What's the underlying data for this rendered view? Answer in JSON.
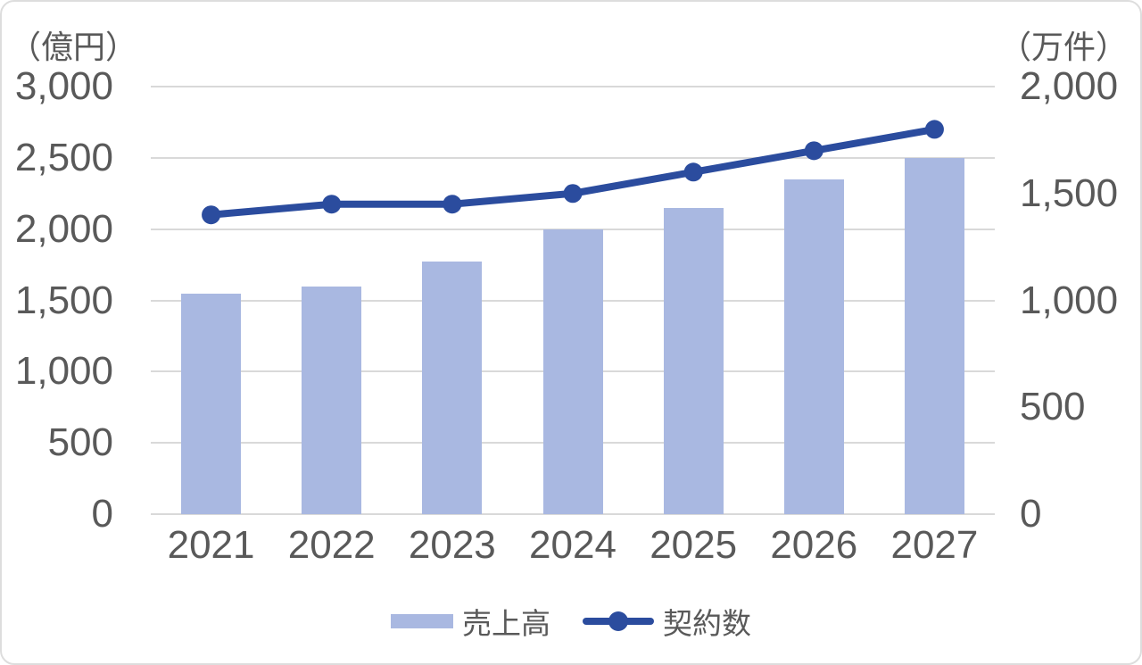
{
  "chart_data": {
    "type": "combo-bar-line",
    "title": "",
    "categories": [
      "2021",
      "2022",
      "2023",
      "2024",
      "2025",
      "2026",
      "2027"
    ],
    "series": [
      {
        "name": "売上高",
        "type": "bar",
        "axis": "left",
        "values": [
          1550,
          1600,
          1775,
          2000,
          2150,
          2350,
          2500
        ],
        "color": "#A9B8E1"
      },
      {
        "name": "契約数",
        "type": "line",
        "axis": "right",
        "values": [
          1400,
          1450,
          1450,
          1500,
          1600,
          1700,
          1800
        ],
        "color": "#2B4C9E"
      }
    ],
    "left_axis": {
      "unit_label": "（億円）",
      "min": 0,
      "max": 3000,
      "step": 500,
      "ticks": [
        "3,000",
        "2,500",
        "2,000",
        "1,500",
        "1,000",
        "500",
        "0"
      ]
    },
    "right_axis": {
      "unit_label": "（万件）",
      "min": 0,
      "max": 2000,
      "step": 500,
      "ticks": [
        "2,000",
        "1,500",
        "1,000",
        "500",
        "0"
      ]
    },
    "grid": true,
    "legend_position": "bottom",
    "colors": {
      "grid": "#D9D9D9",
      "text": "#595959",
      "background": "#FFFFFF",
      "border": "#DDDDDD"
    }
  }
}
